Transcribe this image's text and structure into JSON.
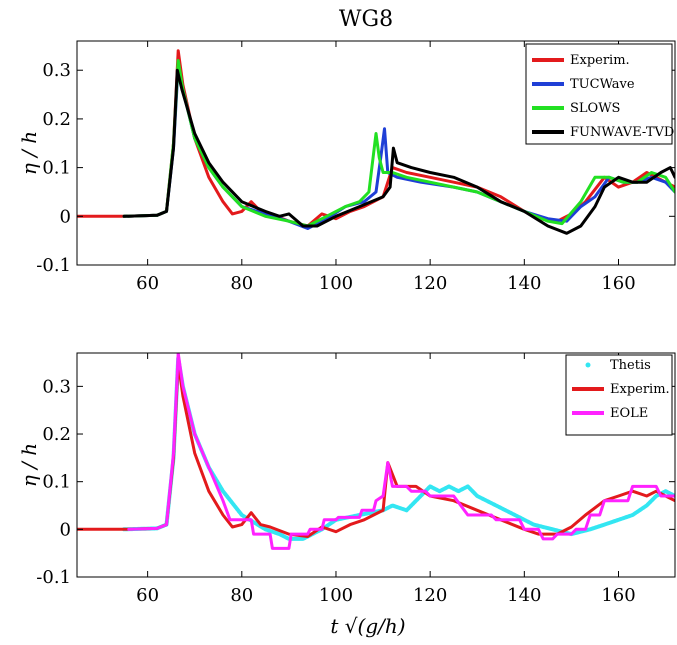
{
  "chart_data": [
    {
      "type": "line",
      "title": "WG8",
      "xlabel": "",
      "ylabel": "η / h",
      "xlim": [
        45,
        172
      ],
      "ylim": [
        -0.1,
        0.36
      ],
      "xticks": [
        60,
        80,
        100,
        120,
        140,
        160
      ],
      "yticks": [
        -0.1,
        0,
        0.1,
        0.2,
        0.3
      ],
      "ytick_labels": [
        "-0.1",
        "0",
        "0.1",
        "0.2",
        "0.3"
      ],
      "grid": false,
      "legend": "top-right",
      "series": [
        {
          "name": "Experim.",
          "color": "#e31a1c",
          "x": [
            45,
            55,
            62,
            64,
            65.5,
            66.5,
            67.5,
            70,
            73,
            76,
            78,
            80,
            82,
            84,
            86,
            90,
            94,
            97,
            100,
            103,
            106,
            108,
            110,
            112,
            115,
            120,
            125,
            130,
            135,
            140,
            143,
            147,
            150,
            153,
            157,
            160,
            163,
            166,
            168,
            170,
            172
          ],
          "y": [
            0,
            0,
            0.002,
            0.01,
            0.15,
            0.34,
            0.27,
            0.16,
            0.08,
            0.03,
            0.005,
            0.01,
            0.03,
            0.01,
            0.005,
            -0.01,
            -0.02,
            0.005,
            -0.005,
            0.01,
            0.02,
            0.03,
            0.04,
            0.1,
            0.09,
            0.08,
            0.07,
            0.06,
            0.04,
            0.01,
            -0.005,
            -0.01,
            0.005,
            0.03,
            0.08,
            0.06,
            0.07,
            0.09,
            0.08,
            0.07,
            0.06
          ]
        },
        {
          "name": "TUCWave",
          "color": "#1f3fd6",
          "x": [
            55,
            62,
            64,
            65.5,
            66.5,
            67.5,
            70,
            73,
            76,
            80,
            85,
            90,
            94,
            98,
            102,
            106,
            108.5,
            109.5,
            110.3,
            111,
            113,
            118,
            125,
            130,
            135,
            140,
            145,
            149,
            152,
            155,
            158,
            161,
            164,
            167,
            170,
            172
          ],
          "y": [
            0,
            0.002,
            0.01,
            0.14,
            0.31,
            0.26,
            0.16,
            0.1,
            0.06,
            0.02,
            0.005,
            -0.01,
            -0.025,
            -0.005,
            0.02,
            0.03,
            0.05,
            0.12,
            0.18,
            0.09,
            0.08,
            0.07,
            0.06,
            0.05,
            0.03,
            0.01,
            -0.005,
            -0.01,
            0.02,
            0.04,
            0.08,
            0.07,
            0.07,
            0.08,
            0.07,
            0.05
          ]
        },
        {
          "name": "SLOWS",
          "color": "#22e022",
          "x": [
            55,
            62,
            64,
            65.5,
            66.5,
            67.5,
            70,
            73,
            76,
            80,
            85,
            90,
            94,
            98,
            102,
            105,
            107,
            108.5,
            109.2,
            110,
            112,
            115,
            120,
            125,
            130,
            135,
            140,
            145,
            148,
            152,
            155,
            158,
            161,
            164,
            167,
            170,
            172
          ],
          "y": [
            0,
            0.002,
            0.01,
            0.15,
            0.32,
            0.26,
            0.16,
            0.1,
            0.06,
            0.02,
            0.0,
            -0.01,
            -0.02,
            0.0,
            0.02,
            0.03,
            0.05,
            0.17,
            0.12,
            0.09,
            0.09,
            0.08,
            0.07,
            0.06,
            0.05,
            0.03,
            0.01,
            -0.01,
            -0.015,
            0.03,
            0.08,
            0.08,
            0.07,
            0.07,
            0.09,
            0.08,
            0.05
          ]
        },
        {
          "name": "FUNWAVE-TVD",
          "color": "#000000",
          "x": [
            55,
            62,
            64,
            65.5,
            66.3,
            67.3,
            70,
            73,
            76,
            80,
            85,
            88,
            90,
            93,
            96,
            100,
            105,
            110,
            111.5,
            112.2,
            113,
            116,
            120,
            125,
            130,
            135,
            140,
            145,
            149,
            152,
            155,
            157,
            160,
            163,
            166,
            169,
            171,
            172
          ],
          "y": [
            0,
            0.002,
            0.01,
            0.14,
            0.3,
            0.26,
            0.17,
            0.11,
            0.07,
            0.03,
            0.01,
            0.0,
            0.005,
            -0.02,
            -0.02,
            0.0,
            0.02,
            0.04,
            0.06,
            0.14,
            0.11,
            0.1,
            0.09,
            0.08,
            0.06,
            0.03,
            0.01,
            -0.02,
            -0.035,
            -0.02,
            0.02,
            0.06,
            0.08,
            0.07,
            0.07,
            0.09,
            0.1,
            0.08
          ]
        }
      ]
    },
    {
      "type": "line",
      "title": "",
      "xlabel": "t √(g/h)",
      "ylabel": "η / h",
      "xlim": [
        45,
        172
      ],
      "ylim": [
        -0.1,
        0.37
      ],
      "xticks": [
        60,
        80,
        100,
        120,
        140,
        160
      ],
      "yticks": [
        -0.1,
        0,
        0.1,
        0.2,
        0.3
      ],
      "ytick_labels": [
        "-0.1",
        "0",
        "0.1",
        "0.2",
        "0.3"
      ],
      "grid": false,
      "legend": "top-right",
      "series": [
        {
          "name": "Thetis",
          "color": "#33e6f2",
          "x": [
            55,
            62,
            64,
            65.5,
            66.5,
            67.5,
            70,
            73,
            76,
            80,
            85,
            88,
            90,
            93,
            97,
            100,
            105,
            110,
            112,
            115,
            118,
            120,
            122,
            124,
            126,
            128,
            130,
            134,
            138,
            142,
            146,
            150,
            154,
            157,
            160,
            163,
            166,
            168,
            170,
            172
          ],
          "y": [
            0,
            0.002,
            0.01,
            0.15,
            0.36,
            0.3,
            0.2,
            0.13,
            0.08,
            0.03,
            0.0,
            -0.01,
            -0.02,
            -0.02,
            0.0,
            0.02,
            0.03,
            0.04,
            0.05,
            0.04,
            0.07,
            0.09,
            0.08,
            0.09,
            0.08,
            0.09,
            0.07,
            0.05,
            0.03,
            0.01,
            0.0,
            -0.01,
            0.0,
            0.01,
            0.02,
            0.03,
            0.05,
            0.07,
            0.08,
            0.07
          ]
        },
        {
          "name": "Experim.",
          "color": "#e31a1c",
          "x": [
            45,
            55,
            62,
            64,
            65.5,
            66.5,
            67.5,
            70,
            73,
            76,
            78,
            80,
            82,
            84,
            86,
            90,
            94,
            97,
            100,
            103,
            106,
            108,
            110,
            111,
            113,
            117,
            120,
            125,
            130,
            135,
            140,
            143,
            147,
            150,
            153,
            157,
            160,
            163,
            166,
            168,
            170,
            172
          ],
          "y": [
            0,
            0,
            0.002,
            0.01,
            0.15,
            0.35,
            0.28,
            0.16,
            0.08,
            0.03,
            0.005,
            0.01,
            0.035,
            0.01,
            0.005,
            -0.01,
            -0.015,
            0.005,
            -0.005,
            0.01,
            0.02,
            0.03,
            0.04,
            0.14,
            0.09,
            0.09,
            0.07,
            0.06,
            0.04,
            0.02,
            0.0,
            -0.01,
            -0.01,
            0.005,
            0.03,
            0.06,
            0.07,
            0.08,
            0.07,
            0.08,
            0.07,
            0.06
          ]
        },
        {
          "name": "EOLE",
          "color": "#ff22ff",
          "x": [
            56,
            62,
            64,
            65.5,
            66.5,
            67.5,
            70,
            73,
            76,
            77.5,
            80,
            82,
            82.5,
            86,
            86.5,
            90,
            90.5,
            94,
            94.5,
            97,
            97.5,
            100,
            100.5,
            105,
            105.5,
            108,
            108.5,
            110,
            111,
            112,
            115,
            116,
            119,
            120,
            125,
            128,
            133,
            134,
            139,
            140,
            143,
            144,
            146,
            147,
            150,
            151,
            153,
            154,
            156,
            157,
            162,
            163,
            168,
            169,
            172
          ],
          "y": [
            0,
            0.002,
            0.01,
            0.16,
            0.37,
            0.3,
            0.2,
            0.13,
            0.06,
            0.02,
            0.02,
            0.02,
            -0.01,
            -0.01,
            -0.04,
            -0.04,
            -0.01,
            -0.01,
            0.0,
            0.0,
            0.02,
            0.02,
            0.025,
            0.025,
            0.04,
            0.04,
            0.06,
            0.07,
            0.14,
            0.09,
            0.09,
            0.08,
            0.08,
            0.07,
            0.07,
            0.03,
            0.03,
            0.02,
            0.02,
            0.0,
            0.0,
            -0.02,
            -0.02,
            -0.01,
            -0.01,
            0.0,
            0.0,
            0.03,
            0.03,
            0.06,
            0.06,
            0.09,
            0.09,
            0.07,
            0.07
          ]
        }
      ]
    }
  ]
}
